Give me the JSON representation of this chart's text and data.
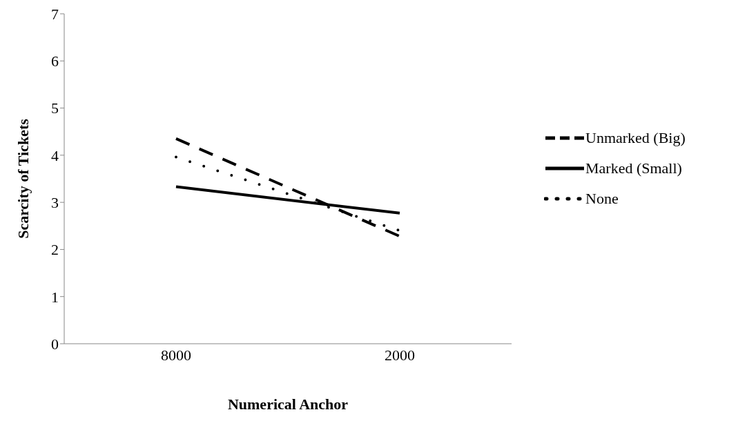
{
  "chart_data": {
    "type": "line",
    "xlabel": "Numerical Anchor",
    "ylabel": "Scarcity of Tickets",
    "categories": [
      "8000",
      "2000"
    ],
    "series": [
      {
        "name": "Unmarked (Big)",
        "color": "#000000",
        "line_style": "dashed",
        "values": [
          4.35,
          2.28
        ]
      },
      {
        "name": "Marked (Small)",
        "color": "#000000",
        "line_style": "solid",
        "values": [
          3.33,
          2.77
        ]
      },
      {
        "name": "None",
        "color": "#000000",
        "line_style": "dotted",
        "values": [
          3.96,
          2.4
        ]
      }
    ],
    "ylim": [
      0,
      7
    ],
    "yticks": [
      0,
      1,
      2,
      3,
      4,
      5,
      6,
      7
    ],
    "grid": false,
    "legend": "right",
    "marker": "none"
  }
}
